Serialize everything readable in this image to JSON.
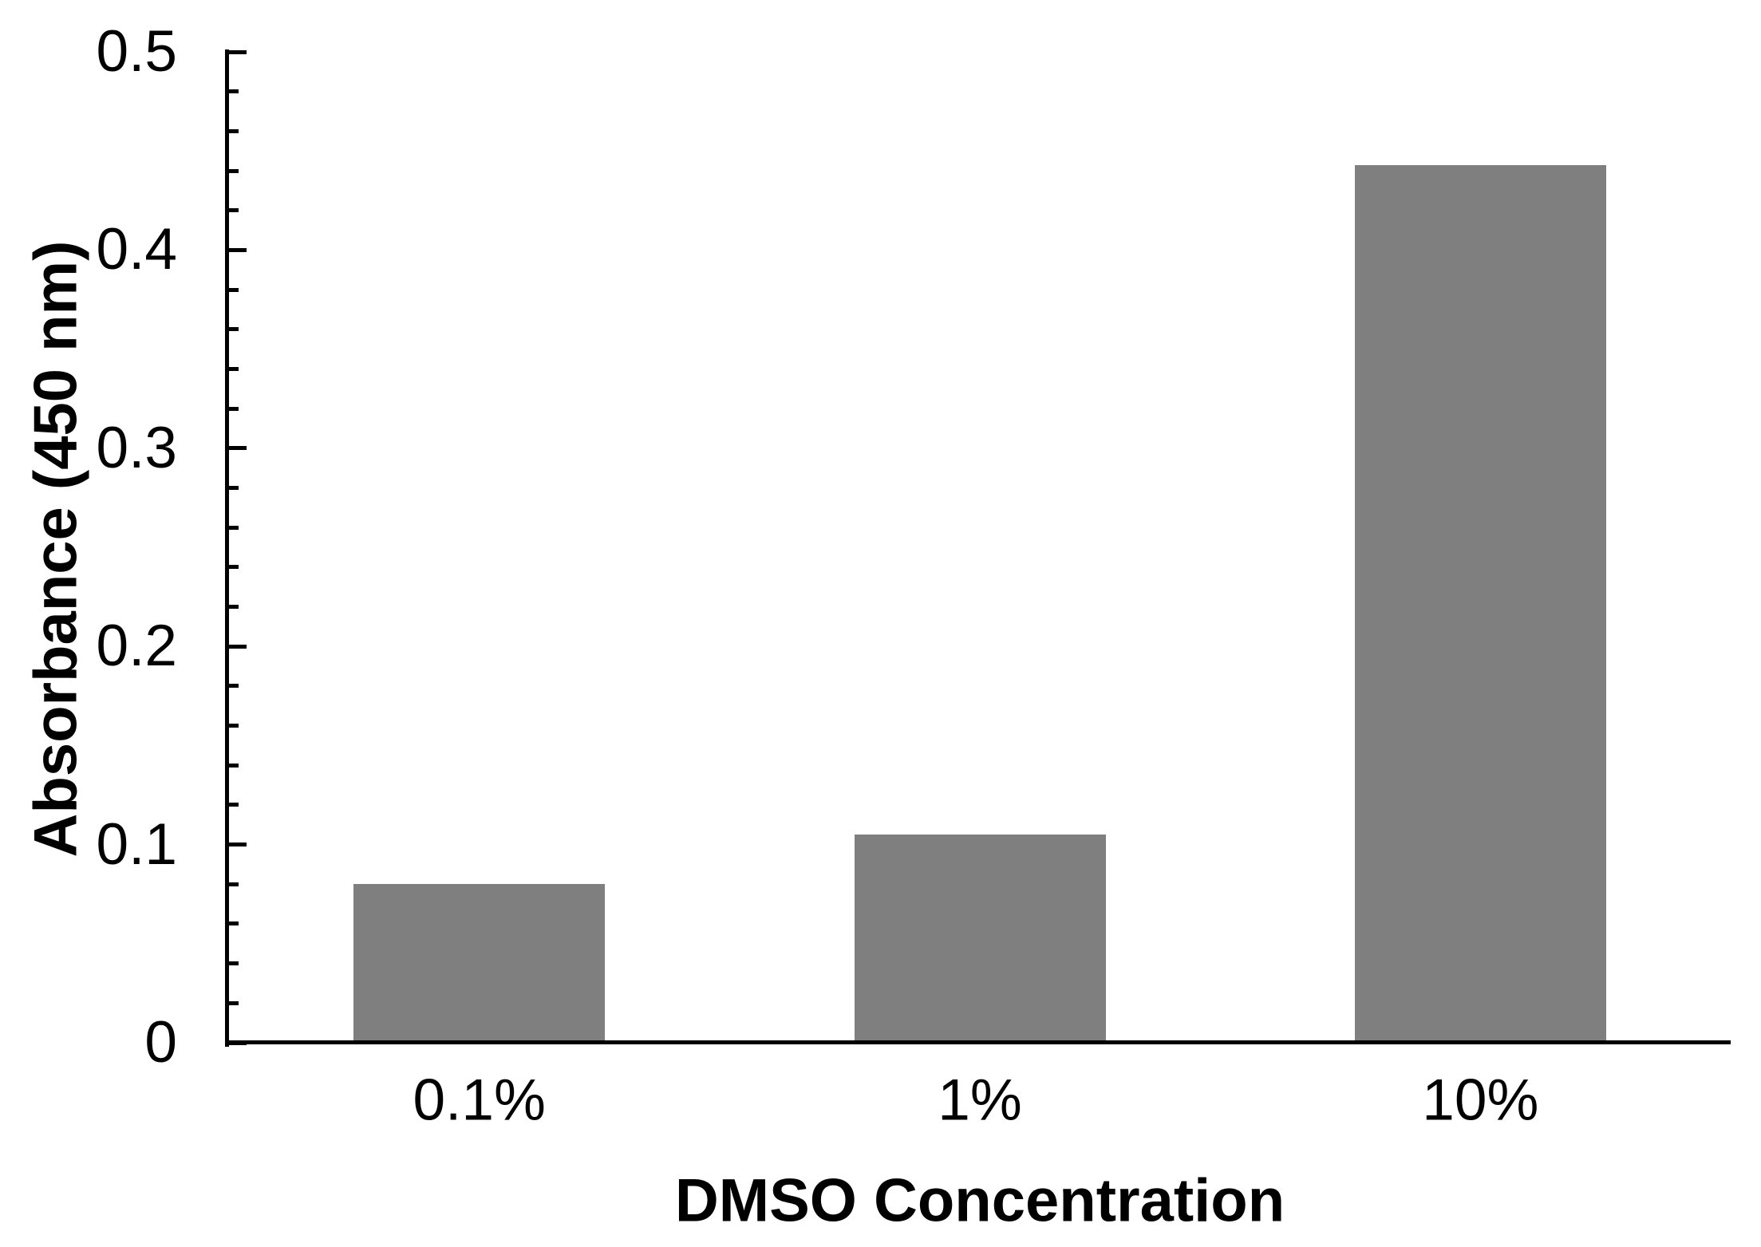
{
  "chart_data": {
    "type": "bar",
    "title": "",
    "categories": [
      "0.1%",
      "1%",
      "10%"
    ],
    "values": [
      0.08,
      0.105,
      0.443
    ],
    "series_name": "Absorbance",
    "xlabel": "DMSO Concentration",
    "ylabel": "Absorbance (450 nm)",
    "ylim": [
      0,
      0.5
    ],
    "y_major_tick_labels": [
      "0",
      "0.1",
      "0.2",
      "0.3",
      "0.4",
      "0.5"
    ],
    "y_minor_tick_step": 0.02,
    "grid": false,
    "legend": "none",
    "bar_color": "#7f7f7f",
    "axis_color": "#000000",
    "text_color": "#000000",
    "background_color": "#ffffff"
  }
}
